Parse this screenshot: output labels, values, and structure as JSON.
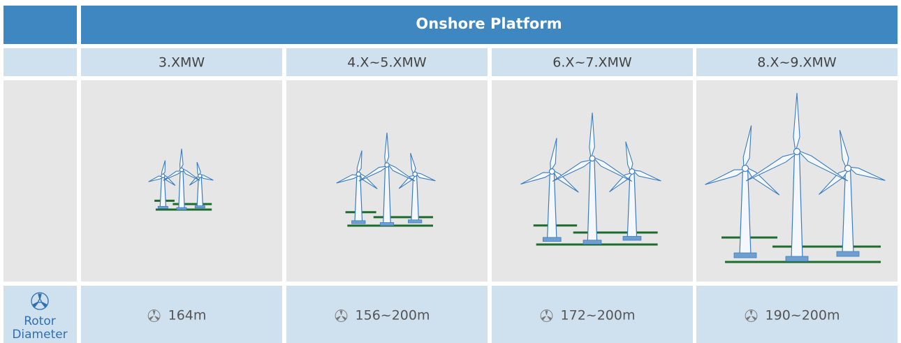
{
  "header": {
    "title": "Onshore Platform"
  },
  "columns": [
    {
      "power": "3.XMW",
      "rotor_diameter": "164m"
    },
    {
      "power": "4.X~5.XMW",
      "rotor_diameter": "156~200m"
    },
    {
      "power": "6.X~7.XMW",
      "rotor_diameter": "172~200m"
    },
    {
      "power": "8.X~9.XMW",
      "rotor_diameter": "190~200m"
    }
  ],
  "row_label": {
    "lines": [
      "Rotor",
      "Diameter"
    ]
  }
}
